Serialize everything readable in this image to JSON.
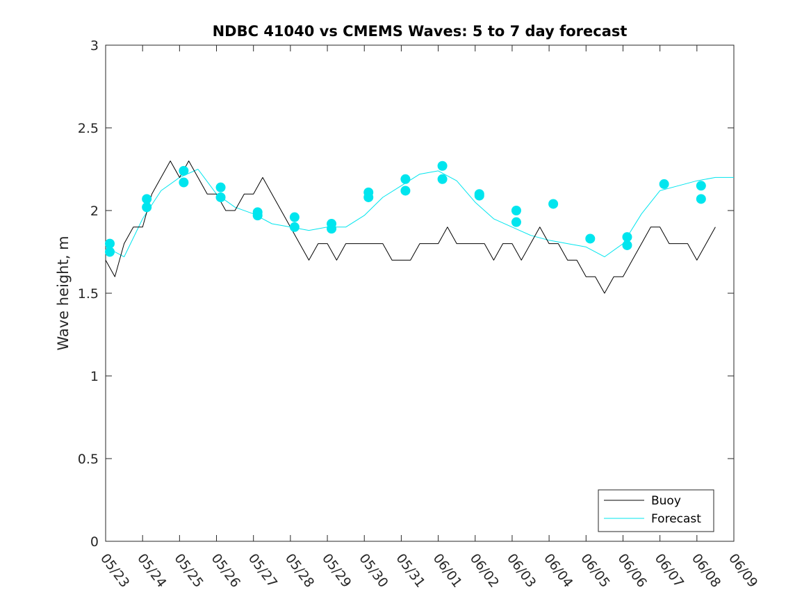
{
  "chart_data": {
    "type": "line",
    "title": "NDBC 41040 vs CMEMS Waves: 5 to 7 day forecast",
    "xlabel": "",
    "ylabel": "Wave height, m",
    "ylim": [
      0,
      3
    ],
    "xlim": [
      "05/23",
      "06/09"
    ],
    "x_ticks": [
      "05/23",
      "05/24",
      "05/25",
      "05/26",
      "05/27",
      "05/28",
      "05/29",
      "05/30",
      "05/31",
      "06/01",
      "06/02",
      "06/03",
      "06/04",
      "06/05",
      "06/06",
      "06/07",
      "06/08",
      "06/09"
    ],
    "y_ticks": [
      "0",
      "0.5",
      "1",
      "1.5",
      "2",
      "2.5",
      "3"
    ],
    "grid": false,
    "legend_position": "bottom-right",
    "colors": {
      "buoy": "#000000",
      "forecast": "#00e5ee"
    },
    "series": [
      {
        "name": "Buoy",
        "style": "thin black line (hourly)",
        "x": [
          "05/23 00:00",
          "05/23 06:00",
          "05/23 12:00",
          "05/23 18:00",
          "05/24 00:00",
          "05/24 06:00",
          "05/24 12:00",
          "05/24 18:00",
          "05/25 00:00",
          "05/25 06:00",
          "05/25 12:00",
          "05/25 18:00",
          "05/26 00:00",
          "05/26 06:00",
          "05/26 12:00",
          "05/26 18:00",
          "05/27 00:00",
          "05/27 06:00",
          "05/27 12:00",
          "05/27 18:00",
          "05/28 00:00",
          "05/28 06:00",
          "05/28 12:00",
          "05/28 18:00",
          "05/29 00:00",
          "05/29 06:00",
          "05/29 12:00",
          "05/29 18:00",
          "05/30 00:00",
          "05/30 06:00",
          "05/30 12:00",
          "05/30 18:00",
          "05/31 00:00",
          "05/31 06:00",
          "05/31 12:00",
          "05/31 18:00",
          "06/01 00:00",
          "06/01 06:00",
          "06/01 12:00",
          "06/01 18:00",
          "06/02 00:00",
          "06/02 06:00",
          "06/02 12:00",
          "06/02 18:00",
          "06/03 00:00",
          "06/03 06:00",
          "06/03 12:00",
          "06/03 18:00",
          "06/04 00:00",
          "06/04 06:00",
          "06/04 12:00",
          "06/04 18:00",
          "06/05 00:00",
          "06/05 06:00",
          "06/05 12:00",
          "06/05 18:00",
          "06/06 00:00",
          "06/06 06:00",
          "06/06 12:00",
          "06/06 18:00",
          "06/07 00:00",
          "06/07 06:00",
          "06/07 12:00",
          "06/07 18:00",
          "06/08 00:00",
          "06/08 06:00",
          "06/08 12:00"
        ],
        "values": [
          1.7,
          1.6,
          1.8,
          1.9,
          1.9,
          2.1,
          2.2,
          2.3,
          2.2,
          2.3,
          2.2,
          2.1,
          2.1,
          2.0,
          2.0,
          2.1,
          2.1,
          2.2,
          2.1,
          2.0,
          1.9,
          1.8,
          1.7,
          1.8,
          1.8,
          1.7,
          1.8,
          1.8,
          1.8,
          1.8,
          1.8,
          1.7,
          1.7,
          1.7,
          1.8,
          1.8,
          1.8,
          1.9,
          1.8,
          1.8,
          1.8,
          1.8,
          1.7,
          1.8,
          1.8,
          1.7,
          1.8,
          1.9,
          1.8,
          1.8,
          1.7,
          1.7,
          1.6,
          1.6,
          1.5,
          1.6,
          1.6,
          1.7,
          1.8,
          1.9,
          1.9,
          1.8,
          1.8,
          1.8,
          1.7,
          1.8,
          1.9
        ]
      },
      {
        "name": "Forecast",
        "style": "cyan line, filled circle at forecast start",
        "x": [
          "05/23 00:00",
          "05/23 12:00",
          "05/24 00:00",
          "05/24 12:00",
          "05/25 00:00",
          "05/25 12:00",
          "05/26 00:00",
          "05/26 12:00",
          "05/27 00:00",
          "05/27 12:00",
          "05/28 00:00",
          "05/28 12:00",
          "05/29 00:00",
          "05/29 12:00",
          "05/30 00:00",
          "05/30 12:00",
          "05/31 00:00",
          "05/31 12:00",
          "06/01 00:00",
          "06/01 12:00",
          "06/02 00:00",
          "06/02 12:00",
          "06/03 00:00",
          "06/03 12:00",
          "06/04 00:00",
          "06/04 12:00",
          "06/05 00:00",
          "06/05 12:00",
          "06/06 00:00",
          "06/06 12:00",
          "06/07 00:00",
          "06/07 12:00",
          "06/08 00:00",
          "06/08 12:00",
          "06/09 00:00"
        ],
        "values": [
          1.78,
          1.72,
          1.95,
          2.12,
          2.2,
          2.25,
          2.1,
          2.02,
          1.98,
          1.92,
          1.9,
          1.88,
          1.9,
          1.9,
          1.97,
          2.08,
          2.15,
          2.22,
          2.24,
          2.18,
          2.05,
          1.95,
          1.9,
          1.85,
          1.82,
          1.8,
          1.78,
          1.72,
          1.8,
          1.98,
          2.12,
          2.15,
          2.18,
          2.2,
          2.2
        ]
      },
      {
        "name": "",
        "style": "forecast start markers",
        "x": [
          "05/23",
          "05/23",
          "05/24",
          "05/24",
          "05/25",
          "05/25",
          "05/26",
          "05/26",
          "05/27",
          "05/27",
          "05/28",
          "05/28",
          "05/29",
          "05/29",
          "05/30",
          "05/30",
          "05/31",
          "05/31",
          "06/01",
          "06/01",
          "06/02",
          "06/02",
          "06/03",
          "06/03",
          "06/04",
          "06/05",
          "06/06",
          "06/06",
          "06/07",
          "06/08",
          "06/08"
        ],
        "values": [
          1.8,
          1.75,
          2.07,
          2.02,
          2.24,
          2.17,
          2.14,
          2.08,
          1.99,
          1.97,
          1.96,
          1.9,
          1.92,
          1.89,
          2.11,
          2.08,
          2.19,
          2.12,
          2.27,
          2.19,
          2.1,
          2.09,
          2.0,
          1.93,
          2.04,
          1.83,
          1.84,
          1.79,
          2.16,
          2.15,
          2.07
        ]
      }
    ],
    "legend": [
      "Buoy",
      "Forecast"
    ]
  }
}
